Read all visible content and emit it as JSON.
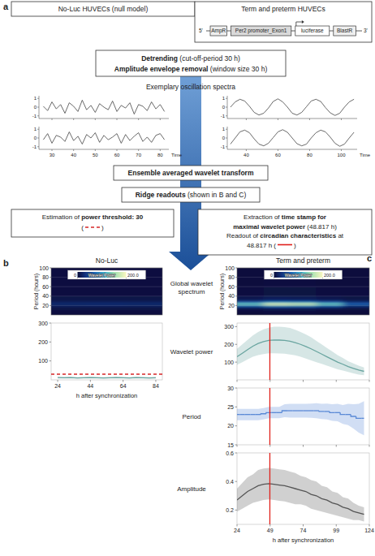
{
  "flowchart": {
    "label": "a",
    "null_model": "No-Luc HUVECs (null model)",
    "samples": "Term and preterm HUVECs",
    "construct": {
      "start": "5'",
      "end": "3'",
      "elements": [
        "AmpR",
        "Per2 promoter_Exon1",
        "luciferase",
        "BlastR"
      ]
    },
    "preprocessing": [
      [
        {
          "text": "Detrending",
          "bold": true
        },
        {
          "text": " (cut-off-period 30 h)"
        }
      ],
      [
        {
          "text": "Amplitude envelope removal",
          "bold": true
        },
        {
          "text": " (window size 30 h)"
        }
      ]
    ],
    "spectra_title": "Exemplary oscillation spectra",
    "steps": [
      [
        {
          "text": "Ensemble averaged wavelet transform",
          "bold": true
        }
      ],
      [
        {
          "text": "Ridge readouts",
          "bold": true
        },
        {
          "text": " (shown in B and C)"
        }
      ]
    ],
    "threshold_box": {
      "lines": [
        [
          {
            "text": "Estimation of "
          },
          {
            "text": "power threshold: 30",
            "bold": true
          }
        ]
      ],
      "marker": {
        "before": "(",
        "after": ")",
        "color": "#d62728",
        "line_style": "dashed"
      }
    },
    "readout_box": {
      "lines": [
        [
          {
            "text": "Extraction of "
          },
          {
            "text": "time stamp for",
            "bold": true
          }
        ],
        [
          {
            "text": "maximal wavelet power",
            "bold": true
          },
          {
            "text": " (48.817 h)"
          }
        ],
        [
          {
            "text": "Readout of "
          },
          {
            "text": "circadian characteristics",
            "bold": true
          },
          {
            "text": " at"
          }
        ]
      ],
      "marker": {
        "before": "48.817 h (",
        "after": ")",
        "color": "#e0201b",
        "line_style": "solid"
      }
    }
  },
  "chart_data": [
    {
      "type": "line",
      "x": [
        26,
        28,
        30,
        32,
        34,
        36,
        38,
        40,
        42,
        44,
        46,
        48,
        50,
        52,
        54,
        56,
        58,
        60,
        62,
        64,
        66,
        68,
        70,
        72,
        74,
        76,
        78,
        80,
        82
      ],
      "values": [
        0.1,
        -0.4,
        0.6,
        -0.2,
        0.3,
        -0.7,
        0.5,
        0.1,
        -0.5,
        0.8,
        -0.3,
        0.2,
        -0.6,
        0.4,
        0.0,
        -0.3,
        0.7,
        -0.5,
        0.2,
        -0.1,
        0.5,
        -0.8,
        0.3,
        0.1,
        -0.4,
        0.6,
        -0.2,
        0.3,
        -0.5
      ],
      "color": "#444444",
      "xlim": [
        24,
        84
      ],
      "xticks": [
        30,
        40,
        50,
        60,
        70,
        80
      ],
      "ylim": [
        -1.3,
        1.3
      ],
      "yticks": [
        -1,
        0,
        1
      ],
      "tick_labels": "y"
    },
    {
      "type": "line",
      "x": [
        26,
        28,
        30,
        32,
        34,
        36,
        38,
        40,
        42,
        44,
        46,
        48,
        50,
        52,
        54,
        56,
        58,
        60,
        62,
        64,
        66,
        68,
        70,
        72,
        74,
        76,
        78,
        80,
        82
      ],
      "values": [
        -0.2,
        0.5,
        -0.6,
        0.3,
        0.1,
        -0.4,
        0.7,
        -0.3,
        0.2,
        -0.7,
        0.4,
        0.0,
        0.6,
        -0.5,
        0.3,
        -0.2,
        0.1,
        0.5,
        -0.6,
        0.4,
        -0.3,
        0.2,
        0.6,
        -0.4,
        0.1,
        -0.5,
        0.3,
        0.5,
        -0.2
      ],
      "color": "#444444",
      "xlim": [
        24,
        84
      ],
      "xticks": [
        30,
        40,
        50,
        60,
        70,
        80
      ],
      "ylim": [
        -1.3,
        1.3
      ],
      "yticks": [
        -1,
        0,
        1
      ],
      "xlabel": "Time"
    },
    {
      "type": "line",
      "x": [
        30,
        33,
        36,
        39,
        42,
        45,
        48,
        51,
        54,
        57,
        60,
        63,
        66,
        69,
        72,
        75,
        78,
        81,
        84,
        87,
        90,
        93,
        96,
        99,
        102,
        105,
        108
      ],
      "values": [
        0.0,
        0.6,
        0.9,
        0.7,
        0.1,
        -0.6,
        -0.9,
        -0.7,
        -0.1,
        0.65,
        0.95,
        0.6,
        0.0,
        -0.7,
        -0.9,
        -0.6,
        0.05,
        0.7,
        0.9,
        0.65,
        -0.05,
        -0.65,
        -0.95,
        -0.7,
        0.0,
        0.6,
        0.9
      ],
      "color": "#444444",
      "xlim": [
        28,
        110
      ],
      "xticks": [
        40,
        60,
        80,
        100
      ],
      "ylim": [
        -1.3,
        1.3
      ],
      "yticks": [
        -1,
        0,
        1
      ],
      "tick_labels": "y"
    },
    {
      "type": "line",
      "x": [
        30,
        33,
        36,
        39,
        42,
        45,
        48,
        51,
        54,
        57,
        60,
        63,
        66,
        69,
        72,
        75,
        78,
        81,
        84,
        87,
        90,
        93,
        96,
        99,
        102,
        105,
        108
      ],
      "values": [
        -0.7,
        0.0,
        0.7,
        0.9,
        0.6,
        -0.1,
        -0.7,
        -0.9,
        -0.6,
        0.05,
        0.7,
        0.95,
        0.65,
        0.0,
        -0.65,
        -0.9,
        -0.7,
        0.0,
        0.6,
        0.9,
        0.7,
        0.1,
        -0.6,
        -0.95,
        -0.7,
        0.0,
        0.65
      ],
      "color": "#444444",
      "xlim": [
        28,
        110
      ],
      "xticks": [
        40,
        60,
        80,
        100
      ],
      "ylim": [
        -1.3,
        1.3
      ],
      "yticks": [
        -1,
        0,
        1
      ],
      "xlabel": "Time"
    },
    {
      "type": "heatmap",
      "panel": "b",
      "title": "No-Luc",
      "x_edges": [
        24,
        44,
        64,
        84
      ],
      "y_edges": [
        0,
        10,
        16,
        20,
        22,
        24,
        26,
        28,
        32,
        40,
        60,
        100
      ],
      "cells": [
        [
          2,
          2,
          2
        ],
        [
          5,
          5,
          5
        ],
        [
          12,
          12,
          12
        ],
        [
          20,
          22,
          20
        ],
        [
          25,
          26,
          25
        ],
        [
          24,
          25,
          24
        ],
        [
          18,
          19,
          18
        ],
        [
          12,
          12,
          12
        ],
        [
          6,
          6,
          6
        ],
        [
          3,
          3,
          3
        ],
        [
          2,
          2,
          2
        ]
      ],
      "xlim": [
        24,
        84
      ],
      "ylim": [
        0,
        100
      ],
      "yticks": [
        20,
        40,
        60,
        80,
        100
      ],
      "ylabel": "Period (hours)",
      "tick_labels": "y",
      "colorbar": {
        "label": "Wavelet Power",
        "range": [
          0,
          200
        ],
        "ticks": [
          0,
          {
            "value": 200,
            "label": "200.0"
          }
        ]
      }
    },
    {
      "type": "line",
      "x": [
        24,
        28,
        32,
        36,
        40,
        44,
        48,
        52,
        56,
        60,
        64,
        68,
        72,
        76,
        80,
        84
      ],
      "values": [
        12,
        11,
        12,
        10,
        11,
        12,
        11,
        10,
        11,
        12,
        11,
        10,
        12,
        11,
        10,
        11
      ],
      "error": [
        4,
        4,
        4,
        4,
        4,
        4,
        4,
        4,
        4,
        4,
        4,
        4,
        4,
        4,
        4,
        4
      ],
      "color": "#6aa5a0",
      "xlim": [
        20,
        88
      ],
      "xticks": [
        24,
        44,
        64,
        84
      ],
      "ylim": [
        0,
        300
      ],
      "yticks": [
        100,
        200,
        300
      ],
      "xlabel": "h after synchronization",
      "hlines": [
        {
          "value": 30,
          "color": "#d62728",
          "line_style": "dashed"
        }
      ]
    },
    {
      "type": "heatmap",
      "panel": "c",
      "title": "Term and preterm",
      "row_label": "Global wavelet spectrum",
      "x_edges": [
        24,
        44,
        64,
        84,
        104,
        124
      ],
      "y_edges": [
        0,
        10,
        16,
        20,
        22,
        24,
        26,
        28,
        32,
        40,
        60,
        100
      ],
      "cells": [
        [
          1,
          2,
          2,
          1,
          1
        ],
        [
          7,
          10,
          9,
          7,
          4
        ],
        [
          42,
          60,
          57,
          42,
          21
        ],
        [
          98,
          140,
          133,
          98,
          49
        ],
        [
          133,
          190,
          180,
          133,
          66
        ],
        [
          126,
          180,
          171,
          126,
          63
        ],
        [
          77,
          110,
          105,
          77,
          38
        ],
        [
          35,
          50,
          48,
          35,
          18
        ],
        [
          10,
          15,
          14,
          10,
          5
        ],
        [
          3,
          4,
          4,
          3,
          2
        ],
        [
          1,
          2,
          2,
          1,
          1
        ]
      ],
      "xlim": [
        24,
        124
      ],
      "ylim": [
        0,
        100
      ],
      "yticks": [
        20,
        40,
        60,
        80,
        100
      ],
      "ylabel": "Period (hours)",
      "tick_labels": "y",
      "colorbar": {
        "label": "Wavelet Power",
        "range": [
          0,
          200
        ],
        "ticks": [
          0,
          {
            "value": 200,
            "label": "200.0"
          }
        ]
      }
    },
    {
      "type": "line",
      "row_label": "Wavelet power",
      "x": [
        24,
        28,
        32,
        36,
        40,
        44,
        48,
        52,
        56,
        60,
        64,
        68,
        72,
        76,
        80,
        84,
        88,
        92,
        96,
        100,
        104,
        108,
        112,
        116,
        120
      ],
      "values": [
        130,
        150,
        170,
        190,
        205,
        215,
        222,
        225,
        224,
        222,
        218,
        210,
        200,
        188,
        175,
        160,
        145,
        130,
        115,
        100,
        88,
        75,
        65,
        55,
        48
      ],
      "error": [
        45,
        50,
        55,
        60,
        65,
        70,
        72,
        75,
        75,
        75,
        75,
        72,
        70,
        68,
        65,
        60,
        55,
        50,
        45,
        40,
        35,
        30,
        28,
        25,
        22
      ],
      "color": "#6aa5a0",
      "xlim": [
        24,
        124
      ],
      "xticks": [
        24,
        49,
        74,
        99,
        124
      ],
      "ylim": [
        0,
        320
      ],
      "yticks": [
        100,
        200,
        300
      ],
      "tick_labels": "y",
      "vlines": [
        {
          "value": 48.817,
          "color": "#e0201b",
          "line_style": "solid"
        }
      ]
    },
    {
      "type": "line",
      "row_label": "Period",
      "line_style": "step",
      "x": [
        24,
        28,
        32,
        36,
        40,
        44,
        48,
        52,
        56,
        60,
        64,
        68,
        72,
        76,
        80,
        84,
        88,
        92,
        96,
        100,
        104,
        108,
        112,
        116,
        120
      ],
      "values": [
        23,
        23,
        23,
        23,
        23,
        23.2,
        23.5,
        23.5,
        23.5,
        24,
        24,
        24,
        24,
        24,
        24,
        24,
        23.8,
        23.8,
        23.5,
        23.5,
        23,
        23,
        22.5,
        22,
        22
      ],
      "error": [
        1.5,
        1.5,
        1.5,
        1.5,
        1.5,
        1.5,
        1.5,
        1.5,
        1.5,
        1.7,
        1.8,
        1.8,
        1.8,
        1.8,
        1.9,
        2,
        2,
        2.1,
        2.2,
        2.3,
        2.5,
        2.8,
        3.2,
        3.8,
        4.5
      ],
      "color": "#5b8ad6",
      "xlim": [
        24,
        124
      ],
      "xticks": [
        24,
        49,
        74,
        99,
        124
      ],
      "ylim": [
        15,
        30
      ],
      "yticks": [
        15,
        20,
        25,
        30
      ],
      "tick_labels": "y",
      "vlines": [
        {
          "value": 48.817,
          "color": "#e0201b",
          "line_style": "solid"
        }
      ]
    },
    {
      "type": "line",
      "row_label": "Amplitude",
      "x": [
        24,
        28,
        32,
        36,
        40,
        44,
        48,
        52,
        56,
        60,
        64,
        68,
        72,
        76,
        80,
        84,
        88,
        92,
        96,
        100,
        104,
        108,
        112,
        116,
        120
      ],
      "values": [
        0.27,
        0.3,
        0.33,
        0.35,
        0.37,
        0.38,
        0.385,
        0.38,
        0.375,
        0.37,
        0.36,
        0.35,
        0.34,
        0.33,
        0.31,
        0.3,
        0.28,
        0.27,
        0.25,
        0.24,
        0.22,
        0.21,
        0.19,
        0.18,
        0.17
      ],
      "error": [
        0.08,
        0.09,
        0.1,
        0.1,
        0.11,
        0.11,
        0.11,
        0.11,
        0.11,
        0.11,
        0.11,
        0.11,
        0.1,
        0.1,
        0.1,
        0.1,
        0.09,
        0.09,
        0.08,
        0.08,
        0.07,
        0.07,
        0.06,
        0.05,
        0.05
      ],
      "color": "#555555",
      "xlim": [
        24,
        124
      ],
      "xticks": [
        24,
        49,
        74,
        99,
        124
      ],
      "ylim": [
        0.1,
        0.6
      ],
      "yticks": [
        0.2,
        0.4,
        0.6
      ],
      "xlabel": "h after synchronization",
      "vlines": [
        {
          "value": 48.817,
          "color": "#e0201b",
          "line_style": "solid"
        }
      ]
    }
  ]
}
